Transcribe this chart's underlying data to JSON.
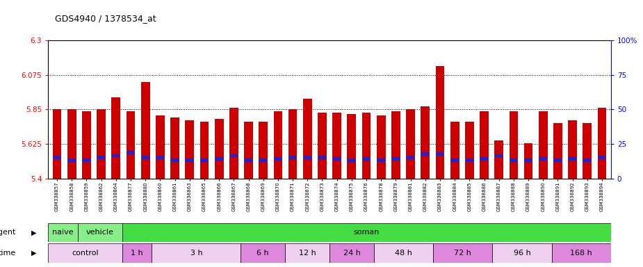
{
  "title": "GDS4940 / 1378534_at",
  "samples": [
    "GSM338857",
    "GSM338858",
    "GSM338859",
    "GSM338862",
    "GSM338864",
    "GSM338877",
    "GSM338880",
    "GSM338860",
    "GSM338861",
    "GSM338863",
    "GSM338865",
    "GSM338866",
    "GSM338867",
    "GSM338868",
    "GSM338869",
    "GSM338870",
    "GSM338871",
    "GSM338872",
    "GSM338873",
    "GSM338874",
    "GSM338875",
    "GSM338876",
    "GSM338878",
    "GSM338879",
    "GSM338881",
    "GSM338882",
    "GSM338883",
    "GSM338884",
    "GSM338885",
    "GSM338886",
    "GSM338887",
    "GSM338888",
    "GSM338889",
    "GSM338890",
    "GSM338891",
    "GSM338892",
    "GSM338893",
    "GSM338894"
  ],
  "red_values": [
    5.85,
    5.85,
    5.84,
    5.85,
    5.93,
    5.84,
    6.03,
    5.81,
    5.8,
    5.78,
    5.77,
    5.79,
    5.86,
    5.77,
    5.77,
    5.84,
    5.85,
    5.92,
    5.83,
    5.83,
    5.82,
    5.83,
    5.81,
    5.84,
    5.85,
    5.87,
    6.13,
    5.77,
    5.77,
    5.84,
    5.65,
    5.84,
    5.63,
    5.84,
    5.76,
    5.78,
    5.76,
    5.86
  ],
  "blue_values": [
    5.54,
    5.52,
    5.52,
    5.54,
    5.55,
    5.57,
    5.54,
    5.54,
    5.52,
    5.52,
    5.52,
    5.53,
    5.55,
    5.52,
    5.52,
    5.53,
    5.54,
    5.54,
    5.54,
    5.53,
    5.52,
    5.53,
    5.52,
    5.53,
    5.54,
    5.56,
    5.56,
    5.52,
    5.52,
    5.53,
    5.55,
    5.52,
    5.52,
    5.53,
    5.52,
    5.53,
    5.52,
    5.54
  ],
  "ylim": [
    5.4,
    6.3
  ],
  "yticks_left": [
    5.4,
    5.625,
    5.85,
    6.075,
    6.3
  ],
  "ytick_labels_left": [
    "5.4",
    "5.625",
    "5.85",
    "6.075",
    "6.3"
  ],
  "yticks_right": [
    0,
    25,
    50,
    75,
    100
  ],
  "ytick_labels_right": [
    "0",
    "25",
    "50",
    "75",
    "100%"
  ],
  "grid_lines": [
    5.625,
    5.85,
    6.075
  ],
  "bar_width": 0.6,
  "bar_color_red": "#cc0000",
  "bar_color_blue": "#2222cc",
  "baseline": 5.4,
  "bg_color": "#ffffff",
  "tick_area_bg": "#d8d8d8",
  "agent_groups": [
    {
      "label": "naive",
      "start": 0,
      "end": 2,
      "color": "#88ee88"
    },
    {
      "label": "vehicle",
      "start": 2,
      "end": 5,
      "color": "#88ee88"
    },
    {
      "label": "soman",
      "start": 5,
      "end": 38,
      "color": "#44dd44"
    }
  ],
  "time_groups": [
    {
      "label": "control",
      "start": 0,
      "end": 5,
      "color": "#f0d0f0"
    },
    {
      "label": "1 h",
      "start": 5,
      "end": 7,
      "color": "#dd88dd"
    },
    {
      "label": "3 h",
      "start": 7,
      "end": 13,
      "color": "#f0d0f0"
    },
    {
      "label": "6 h",
      "start": 13,
      "end": 16,
      "color": "#dd88dd"
    },
    {
      "label": "12 h",
      "start": 16,
      "end": 19,
      "color": "#f0d0f0"
    },
    {
      "label": "24 h",
      "start": 19,
      "end": 22,
      "color": "#dd88dd"
    },
    {
      "label": "48 h",
      "start": 22,
      "end": 26,
      "color": "#f0d0f0"
    },
    {
      "label": "72 h",
      "start": 26,
      "end": 30,
      "color": "#dd88dd"
    },
    {
      "label": "96 h",
      "start": 30,
      "end": 34,
      "color": "#f0d0f0"
    },
    {
      "label": "168 h",
      "start": 34,
      "end": 38,
      "color": "#dd88dd"
    }
  ]
}
